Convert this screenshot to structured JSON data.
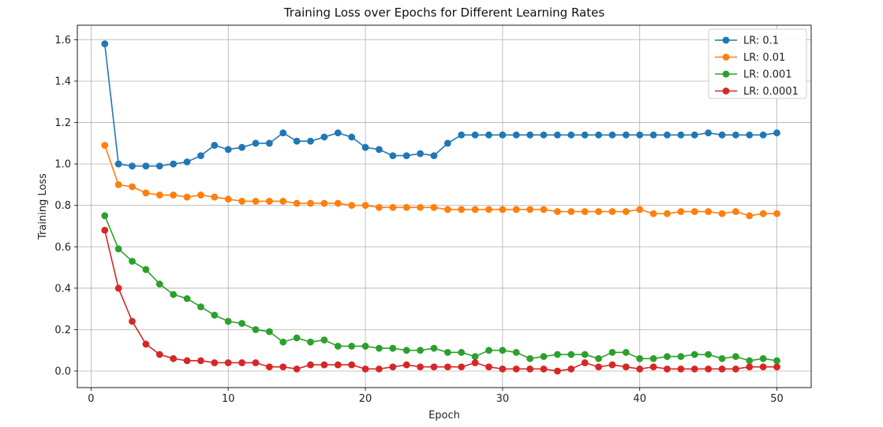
{
  "chart_data": {
    "type": "line",
    "title": "Training Loss over Epochs for Different Learning Rates",
    "xlabel": "Epoch",
    "ylabel": "Training Loss",
    "xlim": [
      -1,
      52.5
    ],
    "ylim": [
      -0.08,
      1.67
    ],
    "xticks": [
      0,
      10,
      20,
      30,
      40,
      50
    ],
    "yticks": [
      0.0,
      0.2,
      0.4,
      0.6,
      0.8,
      1.0,
      1.2,
      1.4,
      1.6
    ],
    "grid": true,
    "legend_position": "top-right",
    "x": [
      1,
      2,
      3,
      4,
      5,
      6,
      7,
      8,
      9,
      10,
      11,
      12,
      13,
      14,
      15,
      16,
      17,
      18,
      19,
      20,
      21,
      22,
      23,
      24,
      25,
      26,
      27,
      28,
      29,
      30,
      31,
      32,
      33,
      34,
      35,
      36,
      37,
      38,
      39,
      40,
      41,
      42,
      43,
      44,
      45,
      46,
      47,
      48,
      49,
      50
    ],
    "series": [
      {
        "name": "LR: 0.1",
        "color": "#1f77b4",
        "values": [
          1.58,
          1.0,
          0.99,
          0.99,
          0.99,
          1.0,
          1.01,
          1.04,
          1.09,
          1.07,
          1.08,
          1.1,
          1.1,
          1.15,
          1.11,
          1.11,
          1.13,
          1.15,
          1.13,
          1.08,
          1.07,
          1.04,
          1.04,
          1.05,
          1.04,
          1.1,
          1.14,
          1.14,
          1.14,
          1.14,
          1.14,
          1.14,
          1.14,
          1.14,
          1.14,
          1.14,
          1.14,
          1.14,
          1.14,
          1.14,
          1.14,
          1.14,
          1.14,
          1.14,
          1.15,
          1.14,
          1.14,
          1.14,
          1.14,
          1.15
        ]
      },
      {
        "name": "LR: 0.01",
        "color": "#ff7f0e",
        "values": [
          1.09,
          0.9,
          0.89,
          0.86,
          0.85,
          0.85,
          0.84,
          0.85,
          0.84,
          0.83,
          0.82,
          0.82,
          0.82,
          0.82,
          0.81,
          0.81,
          0.81,
          0.81,
          0.8,
          0.8,
          0.79,
          0.79,
          0.79,
          0.79,
          0.79,
          0.78,
          0.78,
          0.78,
          0.78,
          0.78,
          0.78,
          0.78,
          0.78,
          0.77,
          0.77,
          0.77,
          0.77,
          0.77,
          0.77,
          0.78,
          0.76,
          0.76,
          0.77,
          0.77,
          0.77,
          0.76,
          0.77,
          0.75,
          0.76,
          0.76
        ]
      },
      {
        "name": "LR: 0.001",
        "color": "#2ca02c",
        "values": [
          0.75,
          0.59,
          0.53,
          0.49,
          0.42,
          0.37,
          0.35,
          0.31,
          0.27,
          0.24,
          0.23,
          0.2,
          0.19,
          0.14,
          0.16,
          0.14,
          0.15,
          0.12,
          0.12,
          0.12,
          0.11,
          0.11,
          0.1,
          0.1,
          0.11,
          0.09,
          0.09,
          0.07,
          0.1,
          0.1,
          0.09,
          0.06,
          0.07,
          0.08,
          0.08,
          0.08,
          0.06,
          0.09,
          0.09,
          0.06,
          0.06,
          0.07,
          0.07,
          0.08,
          0.08,
          0.06,
          0.07,
          0.05,
          0.06,
          0.05
        ]
      },
      {
        "name": "LR: 0.0001",
        "color": "#d62728",
        "values": [
          0.68,
          0.4,
          0.24,
          0.13,
          0.08,
          0.06,
          0.05,
          0.05,
          0.04,
          0.04,
          0.04,
          0.04,
          0.02,
          0.02,
          0.01,
          0.03,
          0.03,
          0.03,
          0.03,
          0.01,
          0.01,
          0.02,
          0.03,
          0.02,
          0.02,
          0.02,
          0.02,
          0.04,
          0.02,
          0.01,
          0.01,
          0.01,
          0.01,
          0.0,
          0.01,
          0.04,
          0.02,
          0.03,
          0.02,
          0.01,
          0.02,
          0.01,
          0.01,
          0.01,
          0.01,
          0.01,
          0.01,
          0.02,
          0.02,
          0.02
        ]
      }
    ]
  }
}
